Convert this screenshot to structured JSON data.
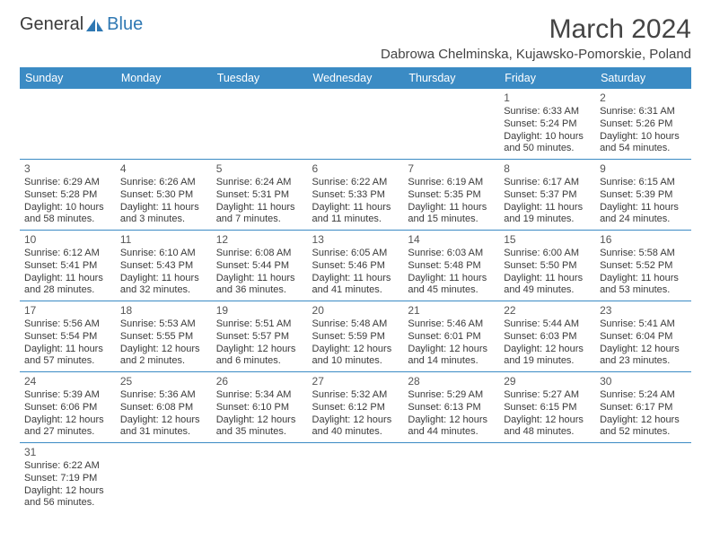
{
  "logo": {
    "text1": "General",
    "text2": "Blue",
    "text1_color": "#4a4a4a",
    "text2_color": "#2f78b3",
    "icon_fill": "#2f78b3"
  },
  "title": "March 2024",
  "location": "Dabrowa Chelminska, Kujawsko-Pomorskie, Poland",
  "header_bg": "#3b8bc4",
  "header_fg": "#ffffff",
  "cell_border": "#3b8bc4",
  "days_of_week": [
    "Sunday",
    "Monday",
    "Tuesday",
    "Wednesday",
    "Thursday",
    "Friday",
    "Saturday"
  ],
  "weeks": [
    [
      null,
      null,
      null,
      null,
      null,
      {
        "n": "1",
        "sr": "6:33 AM",
        "ss": "5:24 PM",
        "dl": "10 hours and 50 minutes."
      },
      {
        "n": "2",
        "sr": "6:31 AM",
        "ss": "5:26 PM",
        "dl": "10 hours and 54 minutes."
      }
    ],
    [
      {
        "n": "3",
        "sr": "6:29 AM",
        "ss": "5:28 PM",
        "dl": "10 hours and 58 minutes."
      },
      {
        "n": "4",
        "sr": "6:26 AM",
        "ss": "5:30 PM",
        "dl": "11 hours and 3 minutes."
      },
      {
        "n": "5",
        "sr": "6:24 AM",
        "ss": "5:31 PM",
        "dl": "11 hours and 7 minutes."
      },
      {
        "n": "6",
        "sr": "6:22 AM",
        "ss": "5:33 PM",
        "dl": "11 hours and 11 minutes."
      },
      {
        "n": "7",
        "sr": "6:19 AM",
        "ss": "5:35 PM",
        "dl": "11 hours and 15 minutes."
      },
      {
        "n": "8",
        "sr": "6:17 AM",
        "ss": "5:37 PM",
        "dl": "11 hours and 19 minutes."
      },
      {
        "n": "9",
        "sr": "6:15 AM",
        "ss": "5:39 PM",
        "dl": "11 hours and 24 minutes."
      }
    ],
    [
      {
        "n": "10",
        "sr": "6:12 AM",
        "ss": "5:41 PM",
        "dl": "11 hours and 28 minutes."
      },
      {
        "n": "11",
        "sr": "6:10 AM",
        "ss": "5:43 PM",
        "dl": "11 hours and 32 minutes."
      },
      {
        "n": "12",
        "sr": "6:08 AM",
        "ss": "5:44 PM",
        "dl": "11 hours and 36 minutes."
      },
      {
        "n": "13",
        "sr": "6:05 AM",
        "ss": "5:46 PM",
        "dl": "11 hours and 41 minutes."
      },
      {
        "n": "14",
        "sr": "6:03 AM",
        "ss": "5:48 PM",
        "dl": "11 hours and 45 minutes."
      },
      {
        "n": "15",
        "sr": "6:00 AM",
        "ss": "5:50 PM",
        "dl": "11 hours and 49 minutes."
      },
      {
        "n": "16",
        "sr": "5:58 AM",
        "ss": "5:52 PM",
        "dl": "11 hours and 53 minutes."
      }
    ],
    [
      {
        "n": "17",
        "sr": "5:56 AM",
        "ss": "5:54 PM",
        "dl": "11 hours and 57 minutes."
      },
      {
        "n": "18",
        "sr": "5:53 AM",
        "ss": "5:55 PM",
        "dl": "12 hours and 2 minutes."
      },
      {
        "n": "19",
        "sr": "5:51 AM",
        "ss": "5:57 PM",
        "dl": "12 hours and 6 minutes."
      },
      {
        "n": "20",
        "sr": "5:48 AM",
        "ss": "5:59 PM",
        "dl": "12 hours and 10 minutes."
      },
      {
        "n": "21",
        "sr": "5:46 AM",
        "ss": "6:01 PM",
        "dl": "12 hours and 14 minutes."
      },
      {
        "n": "22",
        "sr": "5:44 AM",
        "ss": "6:03 PM",
        "dl": "12 hours and 19 minutes."
      },
      {
        "n": "23",
        "sr": "5:41 AM",
        "ss": "6:04 PM",
        "dl": "12 hours and 23 minutes."
      }
    ],
    [
      {
        "n": "24",
        "sr": "5:39 AM",
        "ss": "6:06 PM",
        "dl": "12 hours and 27 minutes."
      },
      {
        "n": "25",
        "sr": "5:36 AM",
        "ss": "6:08 PM",
        "dl": "12 hours and 31 minutes."
      },
      {
        "n": "26",
        "sr": "5:34 AM",
        "ss": "6:10 PM",
        "dl": "12 hours and 35 minutes."
      },
      {
        "n": "27",
        "sr": "5:32 AM",
        "ss": "6:12 PM",
        "dl": "12 hours and 40 minutes."
      },
      {
        "n": "28",
        "sr": "5:29 AM",
        "ss": "6:13 PM",
        "dl": "12 hours and 44 minutes."
      },
      {
        "n": "29",
        "sr": "5:27 AM",
        "ss": "6:15 PM",
        "dl": "12 hours and 48 minutes."
      },
      {
        "n": "30",
        "sr": "5:24 AM",
        "ss": "6:17 PM",
        "dl": "12 hours and 52 minutes."
      }
    ],
    [
      {
        "n": "31",
        "sr": "6:22 AM",
        "ss": "7:19 PM",
        "dl": "12 hours and 56 minutes."
      },
      null,
      null,
      null,
      null,
      null,
      null
    ]
  ],
  "labels": {
    "sunrise": "Sunrise: ",
    "sunset": "Sunset: ",
    "daylight": "Daylight: "
  }
}
